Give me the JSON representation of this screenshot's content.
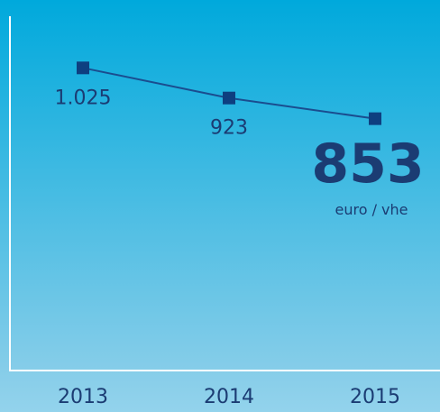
{
  "chart_data": {
    "type": "line",
    "categories": [
      "2013",
      "2014",
      "2015"
    ],
    "series": [
      {
        "color": "#1a4d8f",
        "values": [
          1025,
          923,
          853
        ],
        "value_labels": [
          "1.025",
          "923",
          "853"
        ]
      }
    ],
    "unit": "euro / vhe",
    "ylim": [
      0,
      1200
    ]
  }
}
